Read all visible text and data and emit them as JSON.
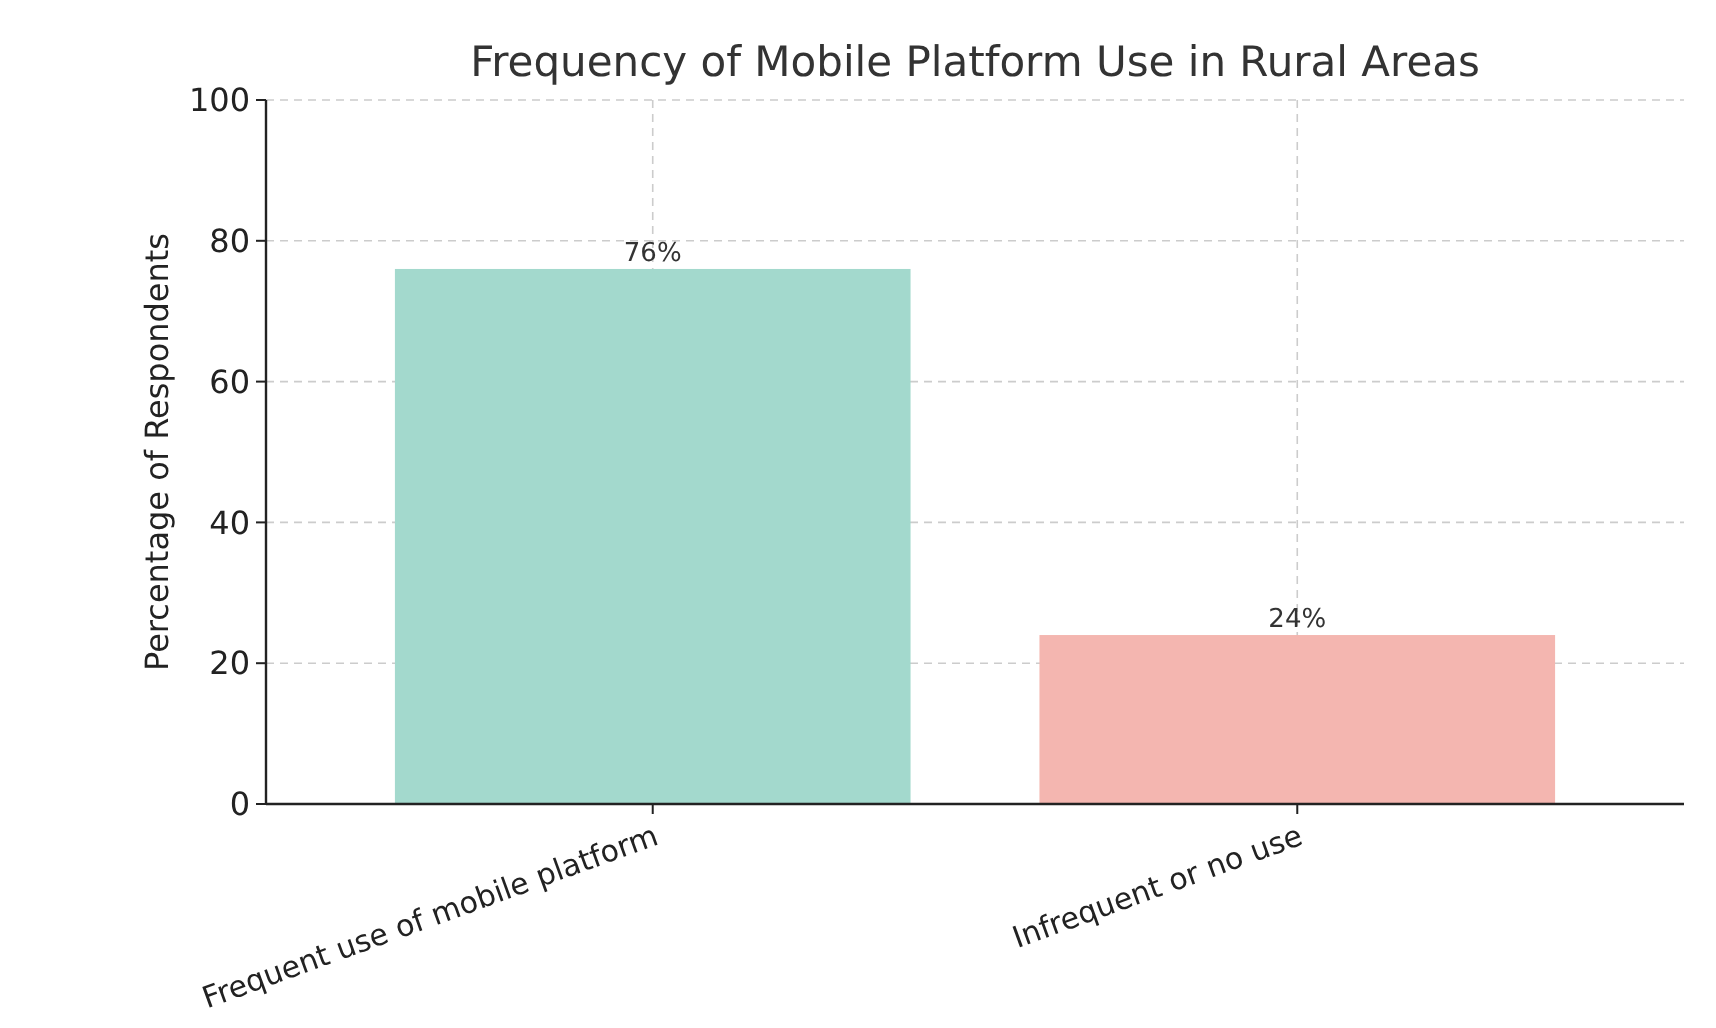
{
  "chart_data": {
    "type": "bar",
    "title": "Frequency of Mobile Platform Use in Rural Areas",
    "ylabel": "Percentage of Respondents",
    "categories": [
      "Frequent use of mobile platform",
      "Infrequent or no use"
    ],
    "values": [
      76,
      24
    ],
    "colors": [
      "#a3d9cd",
      "#f4b6b0"
    ],
    "value_labels": [
      "76%",
      "24%"
    ],
    "ylim": [
      0,
      100
    ],
    "yticks": [
      0,
      20,
      40,
      60,
      80,
      100
    ],
    "grid": true
  }
}
